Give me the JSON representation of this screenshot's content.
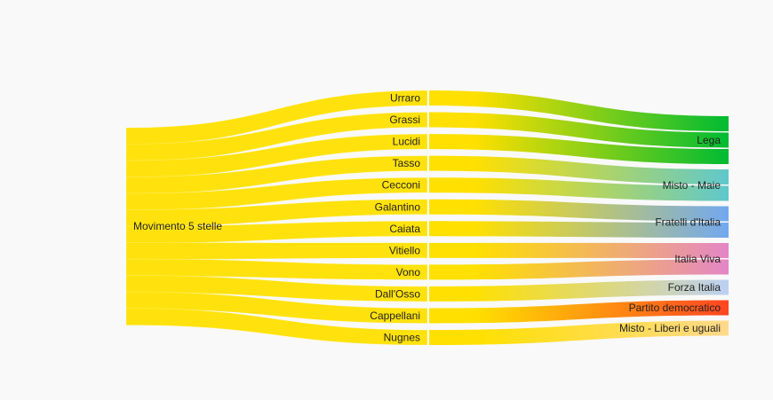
{
  "chart_data": {
    "type": "sankey",
    "source": {
      "label": "Movimento 5 stelle",
      "color": "#ffe000"
    },
    "middle_color": "#ffe000",
    "nodes": [
      {
        "label": "Urraro",
        "target": "Lega"
      },
      {
        "label": "Grassi",
        "target": "Lega"
      },
      {
        "label": "Lucidi",
        "target": "Lega"
      },
      {
        "label": "Tasso",
        "target": "Misto - Maie"
      },
      {
        "label": "Cecconi",
        "target": "Misto - Maie"
      },
      {
        "label": "Galantino",
        "target": "Fratelli d'Italia"
      },
      {
        "label": "Caiata",
        "target": "Fratelli d'Italia"
      },
      {
        "label": "Vitiello",
        "target": "Italia Viva"
      },
      {
        "label": "Vono",
        "target": "Italia Viva"
      },
      {
        "label": "Dall'Osso",
        "target": "Forza Italia"
      },
      {
        "label": "Cappellani",
        "target": "Partito democratico"
      },
      {
        "label": "Nugnes",
        "target": "Misto - Liberi e uguali"
      }
    ],
    "targets": [
      {
        "label": "Lega",
        "color": "#00bb33"
      },
      {
        "label": "Misto - Maie",
        "color": "#5fc8cc"
      },
      {
        "label": "Fratelli d'Italia",
        "color": "#72a8f0"
      },
      {
        "label": "Italia Viva",
        "color": "#e486c6"
      },
      {
        "label": "Forza Italia",
        "color": "#bcd0f4"
      },
      {
        "label": "Partito democratico",
        "color": "#ff4422"
      },
      {
        "label": "Misto - Liberi e uguali",
        "color": "#ffd98c"
      }
    ]
  }
}
